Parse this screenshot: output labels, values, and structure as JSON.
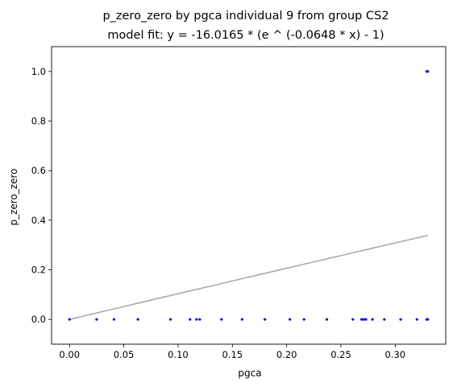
{
  "chart_data": {
    "type": "scatter",
    "title": "p_zero_zero by pgca individual 9 from group CS2",
    "subtitle": "model fit: y = -16.0165 * (e ^ (-0.0648 * x) - 1)",
    "xlabel": "pgca",
    "ylabel": "p_zero_zero",
    "xlim": [
      -0.0165,
      0.3465
    ],
    "ylim": [
      -0.1,
      1.1
    ],
    "xticks": [
      0.0,
      0.05,
      0.1,
      0.15,
      0.2,
      0.25,
      0.3
    ],
    "xtick_labels": [
      "0.00",
      "0.05",
      "0.10",
      "0.15",
      "0.20",
      "0.25",
      "0.30"
    ],
    "yticks": [
      0.0,
      0.2,
      0.4,
      0.6,
      0.8,
      1.0
    ],
    "ytick_labels": [
      "0.0",
      "0.2",
      "0.4",
      "0.6",
      "0.8",
      "1.0"
    ],
    "grid": false,
    "point_color": "#0000ff",
    "fit_color": "#aaaaaa",
    "points": [
      [
        0.0,
        0.0
      ],
      [
        0.025,
        0.0
      ],
      [
        0.041,
        0.0
      ],
      [
        0.063,
        0.0
      ],
      [
        0.093,
        0.0
      ],
      [
        0.111,
        0.0
      ],
      [
        0.117,
        0.0
      ],
      [
        0.12,
        0.0
      ],
      [
        0.14,
        0.0
      ],
      [
        0.159,
        0.0
      ],
      [
        0.18,
        0.0
      ],
      [
        0.203,
        0.0
      ],
      [
        0.216,
        0.0
      ],
      [
        0.237,
        0.0
      ],
      [
        0.261,
        0.0
      ],
      [
        0.269,
        0.0
      ],
      [
        0.271,
        0.0
      ],
      [
        0.273,
        0.0
      ],
      [
        0.279,
        0.0
      ],
      [
        0.29,
        0.0
      ],
      [
        0.305,
        0.0
      ],
      [
        0.32,
        0.0
      ],
      [
        0.329,
        0.0
      ],
      [
        0.33,
        0.0
      ],
      [
        0.329,
        1.0
      ],
      [
        0.33,
        1.0
      ]
    ],
    "fit": {
      "a": -16.0165,
      "b": -0.0648,
      "x_range": [
        0.0,
        0.33
      ]
    }
  }
}
